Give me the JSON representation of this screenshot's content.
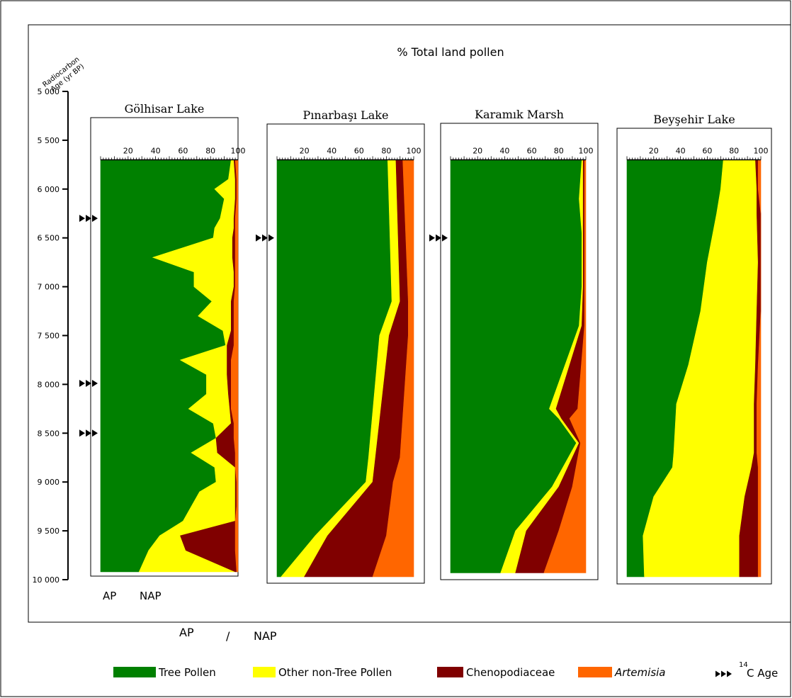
{
  "chart_data": {
    "type": "area",
    "title": "% Total land pollen",
    "ylabel_line1": "Radiocarbon",
    "ylabel_line2": "Age (yr BP)",
    "ylim": [
      5000,
      10000
    ],
    "yticks": [
      5000,
      5500,
      6000,
      6500,
      7000,
      7500,
      8000,
      8500,
      9000,
      9500,
      10000
    ],
    "ytick_labels": [
      "5 000",
      "5 500",
      "6 000",
      "6 500",
      "7 000",
      "7 500",
      "8 000",
      "8 500",
      "9 000",
      "9 500",
      "10 000"
    ],
    "xticks": [
      20,
      40,
      60,
      80,
      100
    ],
    "xtick_labels": [
      "20",
      "40",
      "60",
      "80",
      "100"
    ],
    "stacking": "cumulative percent; layers from left: Tree Pollen, Other non-Tree Pollen, Chenopodiaceae, Artemisia",
    "colors": {
      "tree": "#008000",
      "other": "#ffff00",
      "cheno": "#800000",
      "artemisia": "#ff6600",
      "frame": "#000000"
    },
    "legend": [
      {
        "key": "tree",
        "label": "Tree Pollen",
        "italic": false
      },
      {
        "key": "other",
        "label": "Other non-Tree Pollen",
        "italic": false
      },
      {
        "key": "cheno",
        "label": "Chenopodiaceae",
        "italic": false
      },
      {
        "key": "artemisia",
        "label": "Artemisia",
        "italic": true
      }
    ],
    "c14_legend": {
      "prefix": "14",
      "label": "C Age"
    },
    "ap_nap_label": {
      "ap": "AP",
      "slash": "/",
      "nap": "NAP"
    },
    "inner_labels": {
      "ap": "AP",
      "nap": "NAP"
    },
    "panels": [
      {
        "name": "Gölhisar Lake",
        "age_top": 5700,
        "age_bottom": 9920,
        "c14_ages": [
          6300,
          7990,
          8500
        ],
        "samples": [
          {
            "age": 5700,
            "tree": 95,
            "other": 97,
            "cheno": 98,
            "art": 100
          },
          {
            "age": 5900,
            "tree": 93,
            "other": 98,
            "cheno": 99,
            "art": 100
          },
          {
            "age": 6000,
            "tree": 83,
            "other": 98,
            "cheno": 99,
            "art": 100
          },
          {
            "age": 6100,
            "tree": 90,
            "other": 98,
            "cheno": 99,
            "art": 100
          },
          {
            "age": 6300,
            "tree": 87,
            "other": 97,
            "cheno": 98,
            "art": 100
          },
          {
            "age": 6400,
            "tree": 83,
            "other": 97,
            "cheno": 98,
            "art": 100
          },
          {
            "age": 6500,
            "tree": 82,
            "other": 96,
            "cheno": 98,
            "art": 100
          },
          {
            "age": 6700,
            "tree": 38,
            "other": 96,
            "cheno": 98,
            "art": 100
          },
          {
            "age": 6850,
            "tree": 68,
            "other": 97,
            "cheno": 98,
            "art": 100
          },
          {
            "age": 7000,
            "tree": 68,
            "other": 97,
            "cheno": 98,
            "art": 100
          },
          {
            "age": 7150,
            "tree": 81,
            "other": 95,
            "cheno": 97,
            "art": 100
          },
          {
            "age": 7300,
            "tree": 71,
            "other": 95,
            "cheno": 97,
            "art": 100
          },
          {
            "age": 7450,
            "tree": 89,
            "other": 95,
            "cheno": 97,
            "art": 100
          },
          {
            "age": 7600,
            "tree": 91,
            "other": 92,
            "cheno": 97,
            "art": 100
          },
          {
            "age": 7750,
            "tree": 58,
            "other": 92,
            "cheno": 95,
            "art": 100
          },
          {
            "age": 7900,
            "tree": 77,
            "other": 92,
            "cheno": 95,
            "art": 100
          },
          {
            "age": 8100,
            "tree": 77,
            "other": 93,
            "cheno": 95,
            "art": 100
          },
          {
            "age": 8250,
            "tree": 64,
            "other": 94,
            "cheno": 95,
            "art": 100
          },
          {
            "age": 8400,
            "tree": 82,
            "other": 95,
            "cheno": 97,
            "art": 100
          },
          {
            "age": 8550,
            "tree": 84,
            "other": 84,
            "cheno": 97,
            "art": 100
          },
          {
            "age": 8700,
            "tree": 66,
            "other": 85,
            "cheno": 98,
            "art": 100
          },
          {
            "age": 8850,
            "tree": 83,
            "other": 98,
            "cheno": 98,
            "art": 100
          },
          {
            "age": 9000,
            "tree": 84,
            "other": 98,
            "cheno": 99,
            "art": 100
          },
          {
            "age": 9100,
            "tree": 72,
            "other": 98,
            "cheno": 99,
            "art": 100
          },
          {
            "age": 9250,
            "tree": 66,
            "other": 98,
            "cheno": 99,
            "art": 100
          },
          {
            "age": 9400,
            "tree": 60,
            "other": 98,
            "cheno": 98,
            "art": 100
          },
          {
            "age": 9550,
            "tree": 43,
            "other": 58,
            "cheno": 98,
            "art": 100
          },
          {
            "age": 9700,
            "tree": 35,
            "other": 62,
            "cheno": 98,
            "art": 100
          },
          {
            "age": 9920,
            "tree": 28,
            "other": 98,
            "cheno": 99,
            "art": 100
          }
        ]
      },
      {
        "name": "Pınarbaşı Lake",
        "age_top": 5700,
        "age_bottom": 9970,
        "c14_ages": [
          6500
        ],
        "samples": [
          {
            "age": 5700,
            "tree": 81,
            "other": 87,
            "cheno": 92,
            "art": 100
          },
          {
            "age": 7150,
            "tree": 84,
            "other": 90,
            "cheno": 96,
            "art": 100
          },
          {
            "age": 7500,
            "tree": 75,
            "other": 82,
            "cheno": 96,
            "art": 100
          },
          {
            "age": 8750,
            "tree": 67,
            "other": 72,
            "cheno": 90,
            "art": 100
          },
          {
            "age": 9000,
            "tree": 65,
            "other": 70,
            "cheno": 85,
            "art": 100
          },
          {
            "age": 9550,
            "tree": 28,
            "other": 37,
            "cheno": 80,
            "art": 100
          },
          {
            "age": 9970,
            "tree": 3,
            "other": 20,
            "cheno": 70,
            "art": 100
          }
        ]
      },
      {
        "name": "Karamık Marsh",
        "age_top": 5700,
        "age_bottom": 9930,
        "c14_ages": [
          6500
        ],
        "samples": [
          {
            "age": 5700,
            "tree": 97,
            "other": 98,
            "cheno": 99,
            "art": 100
          },
          {
            "age": 6100,
            "tree": 95,
            "other": 98,
            "cheno": 99,
            "art": 100
          },
          {
            "age": 6450,
            "tree": 97,
            "other": 98,
            "cheno": 99,
            "art": 100
          },
          {
            "age": 7000,
            "tree": 97,
            "other": 98,
            "cheno": 99,
            "art": 100
          },
          {
            "age": 7400,
            "tree": 95,
            "other": 97,
            "cheno": 99,
            "art": 100
          },
          {
            "age": 8250,
            "tree": 73,
            "other": 78,
            "cheno": 94,
            "art": 100
          },
          {
            "age": 8350,
            "tree": 80,
            "other": 82,
            "cheno": 88,
            "art": 100
          },
          {
            "age": 8600,
            "tree": 93,
            "other": 95,
            "cheno": 96,
            "art": 100
          },
          {
            "age": 9050,
            "tree": 75,
            "other": 80,
            "cheno": 90,
            "art": 100
          },
          {
            "age": 9500,
            "tree": 48,
            "other": 56,
            "cheno": 80,
            "art": 100
          },
          {
            "age": 9930,
            "tree": 37,
            "other": 48,
            "cheno": 69,
            "art": 100
          }
        ]
      },
      {
        "name": "Beyşehir Lake",
        "age_top": 5700,
        "age_bottom": 9970,
        "c14_ages": [],
        "samples": [
          {
            "age": 5700,
            "tree": 72,
            "other": 96,
            "cheno": 98,
            "art": 100
          },
          {
            "age": 6000,
            "tree": 70,
            "other": 97,
            "cheno": 98,
            "art": 100
          },
          {
            "age": 6250,
            "tree": 67,
            "other": 97,
            "cheno": 100,
            "art": 100
          },
          {
            "age": 6750,
            "tree": 60,
            "other": 98,
            "cheno": 100,
            "art": 100
          },
          {
            "age": 7250,
            "tree": 55,
            "other": 97,
            "cheno": 100,
            "art": 100
          },
          {
            "age": 7800,
            "tree": 46,
            "other": 96,
            "cheno": 98,
            "art": 100
          },
          {
            "age": 8200,
            "tree": 37,
            "other": 95,
            "cheno": 97,
            "art": 100
          },
          {
            "age": 8700,
            "tree": 35,
            "other": 95,
            "cheno": 97,
            "art": 100
          },
          {
            "age": 8850,
            "tree": 34,
            "other": 93,
            "cheno": 98,
            "art": 100
          },
          {
            "age": 9150,
            "tree": 20,
            "other": 88,
            "cheno": 98,
            "art": 100
          },
          {
            "age": 9550,
            "tree": 12,
            "other": 84,
            "cheno": 98,
            "art": 100
          },
          {
            "age": 9970,
            "tree": 13,
            "other": 84,
            "cheno": 98,
            "art": 100
          }
        ]
      }
    ]
  }
}
